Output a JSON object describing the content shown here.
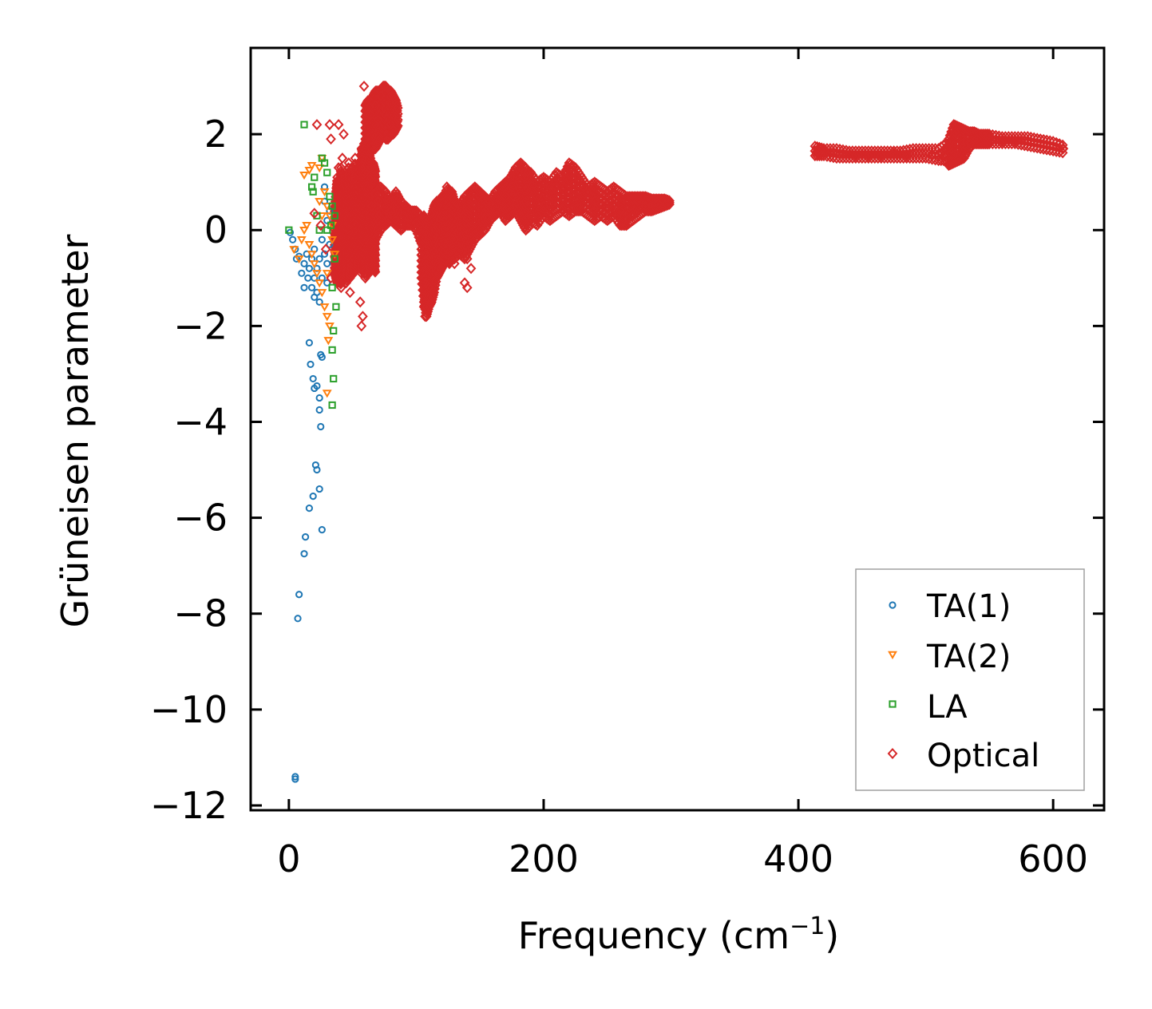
{
  "chart_data": {
    "type": "scatter",
    "title": "",
    "xlabel": "Frequency (cm",
    "xlabel_sup": "−1",
    "xlabel_end": ")",
    "ylabel": "Grüneisen parameter",
    "xlim": [
      -30,
      640
    ],
    "ylim": [
      -12.1,
      3.8
    ],
    "xticks": [
      0,
      200,
      400,
      600
    ],
    "yticks": [
      2,
      0,
      -2,
      -4,
      -6,
      -8,
      -10,
      -12
    ],
    "xtick_labels": [
      "0",
      "200",
      "400",
      "600"
    ],
    "ytick_labels": [
      "2",
      "0",
      "−2",
      "−4",
      "−6",
      "−8",
      "−10",
      "−12"
    ],
    "grid": false,
    "legend_position": "lower-right",
    "series": [
      {
        "name": "TA(1)",
        "marker": "circle",
        "color": "#1f77b4",
        "points": [
          [
            1,
            -0.05
          ],
          [
            3,
            -0.2
          ],
          [
            5,
            -0.4
          ],
          [
            6,
            -0.6
          ],
          [
            8,
            -0.55
          ],
          [
            10,
            -0.9
          ],
          [
            12,
            -0.7
          ],
          [
            12,
            -1.2
          ],
          [
            14,
            -0.5
          ],
          [
            15,
            -1.0
          ],
          [
            16,
            -0.8
          ],
          [
            18,
            -0.6
          ],
          [
            18,
            -1.2
          ],
          [
            20,
            -1.0
          ],
          [
            20,
            -0.4
          ],
          [
            22,
            -0.8
          ],
          [
            22,
            -1.3
          ],
          [
            24,
            -0.6
          ],
          [
            24,
            -1.5
          ],
          [
            26,
            -0.2
          ],
          [
            26,
            -1.0
          ],
          [
            28,
            -0.5
          ],
          [
            28,
            0.6
          ],
          [
            28,
            0.9
          ],
          [
            30,
            0.2
          ],
          [
            30,
            -0.7
          ],
          [
            30,
            -1.1
          ],
          [
            32,
            0.4
          ],
          [
            32,
            -0.3
          ],
          [
            20,
            -1.4
          ],
          [
            16,
            -2.35
          ],
          [
            17,
            -2.8
          ],
          [
            19,
            -3.1
          ],
          [
            20,
            -3.3
          ],
          [
            22,
            -3.25
          ],
          [
            24,
            -3.5
          ],
          [
            25,
            -2.6
          ],
          [
            26,
            -2.65
          ],
          [
            24,
            -3.75
          ],
          [
            25,
            -4.1
          ],
          [
            21,
            -4.9
          ],
          [
            22,
            -5.0
          ],
          [
            24,
            -5.4
          ],
          [
            19,
            -5.55
          ],
          [
            16,
            -5.8
          ],
          [
            26,
            -6.25
          ],
          [
            13,
            -6.4
          ],
          [
            12,
            -6.75
          ],
          [
            8,
            -7.6
          ],
          [
            7,
            -8.1
          ],
          [
            5,
            -11.4
          ],
          [
            5,
            -11.45
          ]
        ]
      },
      {
        "name": "TA(2)",
        "marker": "triangle-down",
        "color": "#ff7f0e",
        "points": [
          [
            4,
            -0.4
          ],
          [
            8,
            -0.6
          ],
          [
            10,
            -0.2
          ],
          [
            12,
            0.0
          ],
          [
            14,
            0.1
          ],
          [
            16,
            -0.3
          ],
          [
            18,
            -0.5
          ],
          [
            20,
            -0.7
          ],
          [
            22,
            -0.9
          ],
          [
            24,
            -1.1
          ],
          [
            26,
            -1.3
          ],
          [
            28,
            -1.6
          ],
          [
            30,
            -1.8
          ],
          [
            32,
            -2.0
          ],
          [
            31,
            -2.3
          ],
          [
            30,
            -3.4
          ],
          [
            26,
            0.3
          ],
          [
            24,
            0.6
          ],
          [
            28,
            0.8
          ],
          [
            30,
            0.5
          ],
          [
            32,
            0.3
          ],
          [
            34,
            -0.2
          ],
          [
            36,
            -0.5
          ],
          [
            30,
            -0.9
          ],
          [
            12,
            1.15
          ],
          [
            16,
            1.25
          ],
          [
            18,
            1.35
          ],
          [
            24,
            1.3
          ],
          [
            26,
            1.5
          ],
          [
            34,
            0.1
          ]
        ]
      },
      {
        "name": "LA",
        "marker": "square",
        "color": "#2ca02c",
        "points": [
          [
            0,
            0.0
          ],
          [
            12,
            2.2
          ],
          [
            18,
            0.9
          ],
          [
            19,
            0.8
          ],
          [
            20,
            1.1
          ],
          [
            22,
            0.3
          ],
          [
            24,
            0.0
          ],
          [
            26,
            1.5
          ],
          [
            28,
            1.4
          ],
          [
            30,
            1.2
          ],
          [
            32,
            0.7
          ],
          [
            34,
            0.5
          ],
          [
            36,
            0.3
          ],
          [
            36,
            -0.6
          ],
          [
            34,
            -1.2
          ],
          [
            37,
            -1.6
          ],
          [
            35,
            -2.1
          ],
          [
            34,
            -2.5
          ],
          [
            35,
            -3.1
          ],
          [
            34,
            -3.65
          ],
          [
            30,
            0.0
          ],
          [
            33,
            0.1
          ]
        ]
      },
      {
        "name": "Optical",
        "marker": "diamond",
        "color": "#d62728",
        "points": [
          [
            59,
            3.0
          ],
          [
            75,
            3.0
          ],
          [
            72,
            2.8
          ],
          [
            68,
            2.6
          ],
          [
            64,
            2.4
          ],
          [
            70,
            2.3
          ],
          [
            80,
            2.2
          ],
          [
            22,
            2.2
          ],
          [
            32,
            2.2
          ],
          [
            39,
            2.2
          ],
          [
            43,
            2.0
          ],
          [
            33,
            1.9
          ],
          [
            42,
            1.5
          ],
          [
            39,
            1.3
          ],
          [
            60,
            1.2
          ],
          [
            20,
            0.35
          ],
          [
            25,
            0.1
          ],
          [
            29,
            -0.4
          ],
          [
            33,
            -1.0
          ],
          [
            40,
            -1.1
          ],
          [
            48,
            -1.3
          ],
          [
            56,
            -1.5
          ],
          [
            58,
            -1.8
          ],
          [
            57,
            -2.0
          ],
          [
            65,
            0.5
          ],
          [
            70,
            0.6
          ],
          [
            80,
            0.4
          ],
          [
            90,
            0.3
          ],
          [
            100,
            0.15
          ],
          [
            105,
            -0.3
          ],
          [
            108,
            -0.8
          ],
          [
            110,
            -1.2
          ],
          [
            106,
            -1.6
          ],
          [
            107,
            -1.8
          ],
          [
            115,
            0.0
          ],
          [
            120,
            0.3
          ],
          [
            125,
            0.1
          ],
          [
            130,
            -0.2
          ],
          [
            135,
            0.4
          ],
          [
            140,
            -0.6
          ],
          [
            143,
            -0.8
          ],
          [
            138,
            -1.1
          ],
          [
            140,
            -1.2
          ],
          [
            130,
            -0.7
          ],
          [
            150,
            0.8
          ],
          [
            160,
            0.5
          ],
          [
            170,
            0.7
          ],
          [
            175,
            0.9
          ],
          [
            182,
            1.3
          ],
          [
            185,
            1.1
          ],
          [
            190,
            0.2
          ],
          [
            195,
            0.7
          ],
          [
            200,
            0.5
          ],
          [
            210,
            0.9
          ],
          [
            215,
            0.6
          ],
          [
            222,
            1.3
          ],
          [
            225,
            1.1
          ],
          [
            230,
            0.7
          ],
          [
            240,
            0.6
          ],
          [
            250,
            0.5
          ],
          [
            260,
            0.4
          ],
          [
            265,
            0.1
          ],
          [
            270,
            0.3
          ],
          [
            280,
            0.5
          ],
          [
            290,
            0.55
          ],
          [
            298,
            0.6
          ],
          [
            415,
            1.65
          ],
          [
            425,
            1.6
          ],
          [
            435,
            1.6
          ],
          [
            445,
            1.55
          ],
          [
            455,
            1.55
          ],
          [
            465,
            1.55
          ],
          [
            475,
            1.6
          ],
          [
            485,
            1.55
          ],
          [
            495,
            1.6
          ],
          [
            505,
            1.55
          ],
          [
            515,
            1.55
          ],
          [
            520,
            1.6
          ],
          [
            523,
            2.05
          ],
          [
            528,
            1.95
          ],
          [
            535,
            1.8
          ],
          [
            540,
            1.9
          ],
          [
            550,
            1.9
          ],
          [
            560,
            1.85
          ],
          [
            570,
            1.85
          ],
          [
            580,
            1.85
          ],
          [
            590,
            1.8
          ],
          [
            600,
            1.75
          ],
          [
            608,
            1.7
          ]
        ]
      }
    ],
    "optical_bands": [
      {
        "x": [
          36,
          37,
          38,
          39,
          40,
          41,
          42,
          43,
          44,
          45,
          46,
          47,
          48,
          49,
          50,
          51,
          52,
          53,
          54,
          55,
          56,
          57,
          58,
          59,
          60,
          61,
          62,
          63,
          64,
          65,
          66,
          67,
          68
        ],
        "lo": [
          -0.9,
          -1.0,
          -1.1,
          -0.8,
          -0.9,
          -1.2,
          -0.8,
          -1.0,
          -0.7,
          -1.1,
          -0.9,
          -0.6,
          -1.0,
          -0.8,
          -0.5,
          -0.9,
          -0.7,
          -0.4,
          -0.8,
          -0.6,
          -0.5,
          -0.9,
          -0.7,
          -0.6,
          -1.0,
          -0.8,
          -0.7,
          -0.9,
          -0.8,
          -0.6,
          -0.7,
          -0.8,
          -0.9
        ],
        "hi": [
          0.4,
          0.8,
          1.1,
          0.7,
          1.0,
          1.3,
          0.6,
          0.9,
          1.2,
          0.8,
          1.0,
          1.4,
          0.7,
          0.9,
          1.3,
          1.0,
          1.5,
          0.8,
          1.1,
          1.4,
          1.2,
          1.7,
          1.6,
          1.8,
          1.5,
          1.4,
          1.6,
          1.3,
          1.5,
          1.2,
          1.4,
          1.3,
          1.2
        ]
      },
      {
        "x": [
          60,
          62,
          64,
          66,
          68,
          70,
          72,
          74,
          76,
          78,
          80,
          82,
          84,
          86
        ],
        "lo": [
          1.2,
          1.4,
          1.6,
          1.7,
          1.7,
          1.8,
          1.9,
          2.0,
          1.9,
          1.9,
          2.0,
          2.0,
          2.1,
          2.2
        ],
        "hi": [
          2.6,
          2.7,
          2.7,
          2.8,
          2.9,
          2.9,
          2.9,
          3.0,
          3.0,
          2.9,
          2.9,
          2.8,
          2.7,
          2.5
        ]
      },
      {
        "x": [
          68,
          72,
          76,
          80,
          84,
          88,
          92,
          96,
          100,
          104
        ],
        "lo": [
          -0.2,
          0.0,
          0.1,
          0.2,
          0.1,
          0.0,
          0.1,
          0.1,
          0.0,
          -0.3
        ],
        "hi": [
          0.8,
          0.9,
          0.8,
          0.6,
          0.8,
          0.6,
          0.5,
          0.4,
          0.4,
          0.3
        ]
      },
      {
        "x": [
          104,
          106,
          108,
          110,
          112,
          114,
          116,
          118,
          120,
          122,
          124,
          126,
          128,
          130
        ],
        "lo": [
          -1.0,
          -1.5,
          -1.8,
          -1.6,
          -1.5,
          -1.3,
          -1.0,
          -0.9,
          -0.8,
          -0.7,
          -0.5,
          -0.7,
          -0.6,
          -0.4
        ],
        "hi": [
          0.2,
          0.3,
          0.1,
          0.2,
          0.3,
          0.5,
          0.6,
          0.5,
          0.7,
          0.6,
          0.9,
          0.7,
          0.8,
          0.6
        ]
      },
      {
        "x": [
          130,
          134,
          138,
          142,
          146,
          150,
          154,
          158,
          162,
          166,
          170,
          174,
          178,
          182,
          186,
          190
        ],
        "lo": [
          -0.6,
          -0.5,
          -0.6,
          -0.4,
          -0.2,
          -0.1,
          0.0,
          0.2,
          0.3,
          0.4,
          0.2,
          0.3,
          0.4,
          0.2,
          0.0,
          0.1
        ],
        "hi": [
          0.6,
          0.5,
          0.7,
          0.8,
          0.9,
          0.8,
          0.7,
          0.6,
          0.8,
          0.9,
          1.0,
          1.1,
          1.3,
          1.4,
          1.3,
          1.1
        ]
      },
      {
        "x": [
          190,
          195,
          200,
          205,
          210,
          215,
          220,
          225,
          230,
          235,
          240,
          245,
          250,
          255,
          260,
          265,
          270,
          275,
          280,
          285,
          290,
          295,
          300
        ],
        "lo": [
          0.2,
          0.1,
          0.3,
          0.2,
          0.3,
          0.4,
          0.3,
          0.4,
          0.4,
          0.3,
          0.2,
          0.3,
          0.2,
          0.3,
          0.1,
          0.1,
          0.2,
          0.3,
          0.4,
          0.4,
          0.45,
          0.5,
          0.55
        ],
        "hi": [
          1.2,
          1.0,
          1.1,
          1.0,
          1.2,
          1.1,
          1.4,
          1.3,
          1.1,
          0.9,
          1.0,
          0.9,
          0.8,
          0.9,
          0.8,
          0.7,
          0.7,
          0.7,
          0.7,
          0.65,
          0.65,
          0.65,
          0.6
        ]
      },
      {
        "x": [
          413,
          420,
          430,
          440,
          450,
          460,
          470,
          480,
          490,
          500,
          510,
          518
        ],
        "lo": [
          1.55,
          1.55,
          1.5,
          1.5,
          1.5,
          1.5,
          1.5,
          1.5,
          1.5,
          1.5,
          1.45,
          1.45
        ],
        "hi": [
          1.75,
          1.7,
          1.7,
          1.65,
          1.65,
          1.65,
          1.65,
          1.65,
          1.7,
          1.7,
          1.7,
          1.85
        ]
      },
      {
        "x": [
          518,
          522,
          526,
          530,
          534,
          538,
          542,
          546,
          550,
          560,
          570,
          580,
          590,
          600,
          610
        ],
        "lo": [
          1.35,
          1.4,
          1.45,
          1.5,
          1.7,
          1.8,
          1.8,
          1.8,
          1.8,
          1.8,
          1.8,
          1.75,
          1.7,
          1.65,
          1.6
        ],
        "hi": [
          1.9,
          2.2,
          2.15,
          2.1,
          2.05,
          2.05,
          2.0,
          2.0,
          2.0,
          1.95,
          1.95,
          1.95,
          1.9,
          1.85,
          1.75
        ]
      }
    ]
  }
}
